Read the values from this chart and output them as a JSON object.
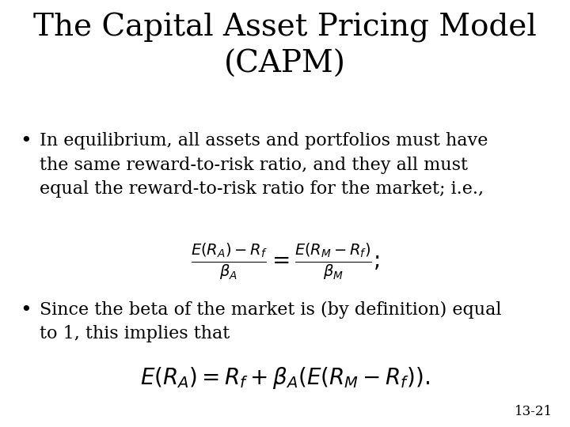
{
  "title": "The Capital Asset Pricing Model\n(CAPM)",
  "title_fontsize": 28,
  "title_fontfamily": "serif",
  "background_color": "#ffffff",
  "text_color": "#000000",
  "bullet1": "In equilibrium, all assets and portfolios must have\nthe same reward-to-risk ratio, and they all must\nequal the reward-to-risk ratio for the market; i.e.,",
  "bullet2": "Since the beta of the market is (by definition) equal\nto 1, this implies that",
  "formula1": "\\frac{E(R_A)-R_f}{\\beta_A} = \\frac{E(R_M - R_f)}{\\beta_M};",
  "formula2": "E(R_A) = R_f + \\beta_A \\left(E(R_M - R_f)\\right).",
  "footnote": "13-21",
  "body_fontsize": 16,
  "formula_fontsize": 20,
  "footnote_fontsize": 12
}
